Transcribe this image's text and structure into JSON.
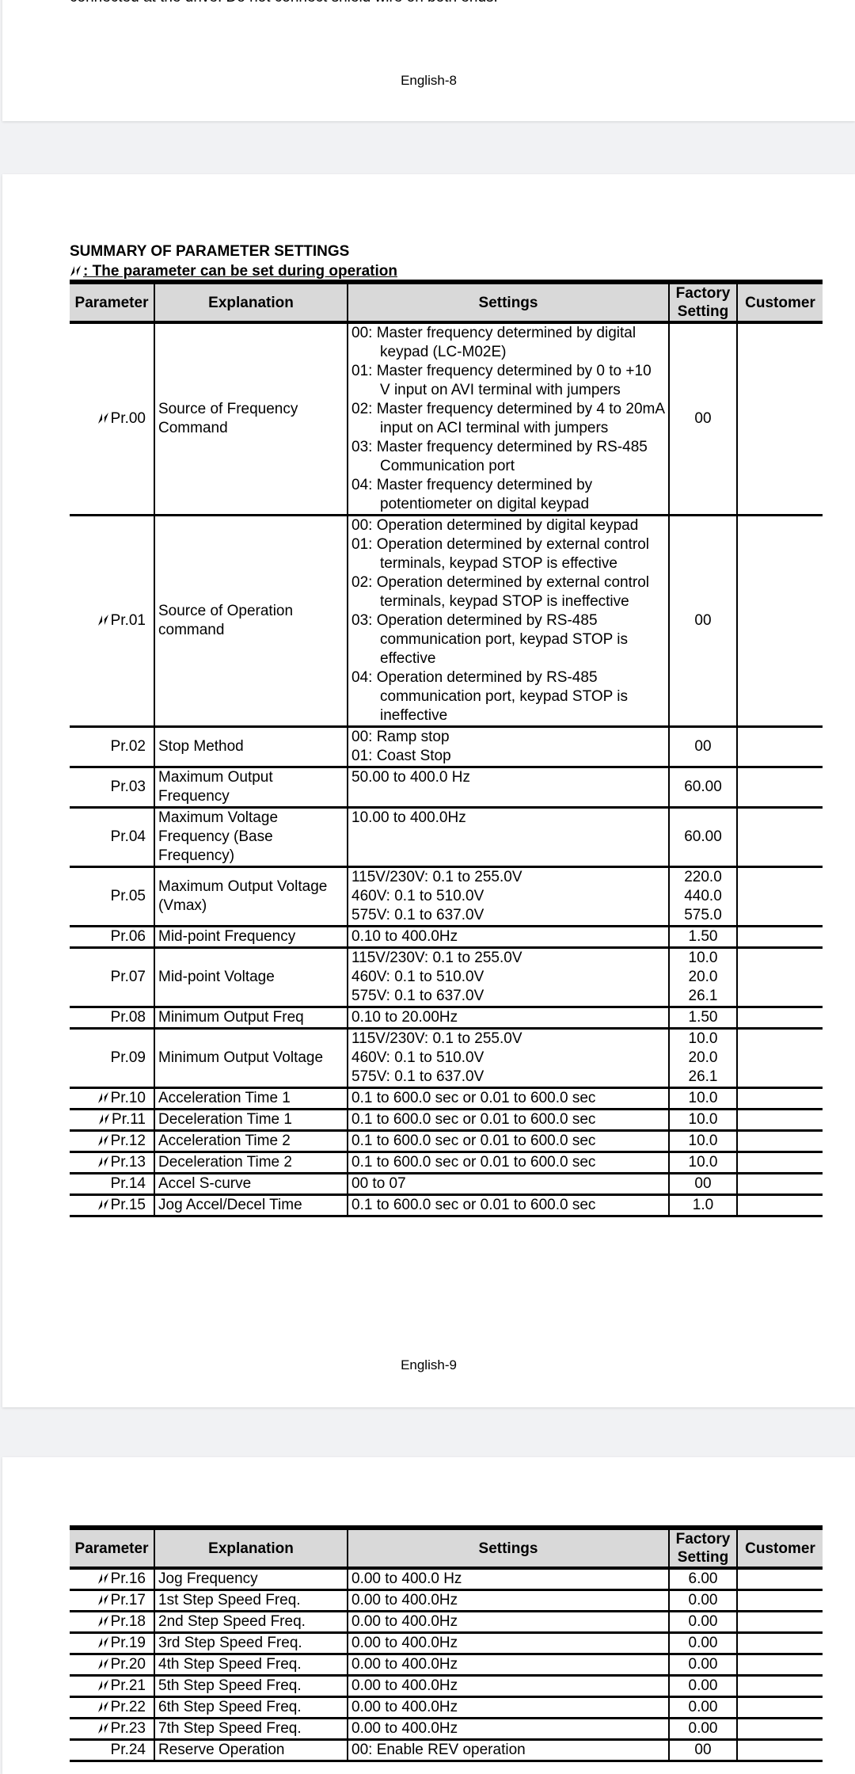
{
  "page1": {
    "top_text": "connected at the drive. Do not connect shield wire on both ends.",
    "page_number": "English-8"
  },
  "page2": {
    "title": "SUMMARY OF PARAMETER SETTINGS",
    "legend_icon": "edit-during-operation-icon",
    "legend": ": The parameter can be set during operation",
    "headers": {
      "parameter": "Parameter",
      "explanation": "Explanation",
      "settings": "Settings",
      "factory_1": "Factory",
      "factory_2": "Setting",
      "customer": "Customer"
    },
    "rows": [
      {
        "param": "Pr.00",
        "editable": true,
        "explanation": "Source of Frequency Command",
        "settings": [
          "00: Master frequency determined by digital keypad (LC-M02E)",
          "01: Master frequency determined by 0 to +10 V input on AVI terminal with jumpers",
          "02: Master frequency determined by 4 to 20mA input on ACI terminal with jumpers",
          "03: Master frequency determined by RS-485 Communication port",
          "04: Master frequency determined by potentiometer on digital keypad"
        ],
        "factory": "00"
      },
      {
        "param": "Pr.01",
        "editable": true,
        "explanation": "Source of Operation command",
        "settings": [
          "00: Operation determined by digital keypad",
          "01: Operation determined by external control terminals, keypad STOP is effective",
          "02: Operation determined by external control terminals, keypad STOP is ineffective",
          "03: Operation determined by RS-485 communication port, keypad STOP is effective",
          "04: Operation determined by RS-485 communication port, keypad STOP is ineffective"
        ],
        "factory": "00"
      },
      {
        "param": "Pr.02",
        "editable": false,
        "explanation": "Stop Method",
        "settings": [
          "00: Ramp stop",
          "01: Coast Stop"
        ],
        "factory": "00"
      },
      {
        "param": "Pr.03",
        "editable": false,
        "explanation": "Maximum Output Frequency",
        "settings": [
          "50.00 to 400.0 Hz"
        ],
        "factory": "60.00"
      },
      {
        "param": "Pr.04",
        "editable": false,
        "explanation": "Maximum Voltage Frequency (Base Frequency)",
        "settings": [
          "10.00 to 400.0Hz"
        ],
        "factory": "60.00"
      },
      {
        "param": "Pr.05",
        "editable": false,
        "explanation": "Maximum Output Voltage (Vmax)",
        "settings": [
          "115V/230V: 0.1 to 255.0V",
          "460V: 0.1 to 510.0V",
          "575V: 0.1 to 637.0V"
        ],
        "factory": "220.0\n440.0\n575.0"
      },
      {
        "param": "Pr.06",
        "editable": false,
        "explanation": "Mid-point Frequency",
        "settings": [
          "0.10 to 400.0Hz"
        ],
        "factory": "1.50"
      },
      {
        "param": "Pr.07",
        "editable": false,
        "explanation": "Mid-point Voltage",
        "settings": [
          "115V/230V: 0.1 to 255.0V",
          "460V: 0.1 to 510.0V",
          "575V: 0.1 to 637.0V"
        ],
        "factory": "10.0\n20.0\n26.1"
      },
      {
        "param": "Pr.08",
        "editable": false,
        "explanation": "Minimum Output Freq",
        "settings": [
          "0.10 to 20.00Hz"
        ],
        "factory": "1.50"
      },
      {
        "param": "Pr.09",
        "editable": false,
        "explanation": "Minimum Output Voltage",
        "settings": [
          "115V/230V: 0.1 to 255.0V",
          "460V: 0.1 to 510.0V",
          "575V: 0.1 to 637.0V"
        ],
        "factory": "10.0\n20.0\n26.1"
      },
      {
        "param": "Pr.10",
        "editable": true,
        "explanation": "Acceleration Time 1",
        "settings": [
          "0.1 to 600.0 sec or 0.01 to 600.0 sec"
        ],
        "factory": "10.0"
      },
      {
        "param": "Pr.11",
        "editable": true,
        "explanation": "Deceleration Time 1",
        "settings": [
          "0.1 to 600.0 sec or 0.01 to 600.0 sec"
        ],
        "factory": "10.0"
      },
      {
        "param": "Pr.12",
        "editable": true,
        "explanation": "Acceleration Time 2",
        "settings": [
          "0.1 to 600.0 sec or 0.01 to 600.0 sec"
        ],
        "factory": "10.0"
      },
      {
        "param": "Pr.13",
        "editable": true,
        "explanation": "Deceleration Time 2",
        "settings": [
          "0.1 to 600.0 sec or 0.01 to 600.0 sec"
        ],
        "factory": "10.0"
      },
      {
        "param": "Pr.14",
        "editable": false,
        "explanation": "Accel S-curve",
        "settings": [
          "00 to 07"
        ],
        "factory": "00"
      },
      {
        "param": "Pr.15",
        "editable": true,
        "explanation": "Jog Accel/Decel Time",
        "settings": [
          "0.1 to 600.0 sec or 0.01 to 600.0 sec"
        ],
        "factory": "1.0"
      }
    ],
    "page_number": "English-9"
  },
  "page3": {
    "headers": {
      "parameter": "Parameter",
      "explanation": "Explanation",
      "settings": "Settings",
      "factory_1": "Factory",
      "factory_2": "Setting",
      "customer": "Customer"
    },
    "rows": [
      {
        "param": "Pr.16",
        "editable": true,
        "explanation": "Jog Frequency",
        "settings": [
          "0.00 to 400.0 Hz"
        ],
        "factory": "6.00"
      },
      {
        "param": "Pr.17",
        "editable": true,
        "explanation": "1st Step Speed Freq.",
        "settings": [
          "0.00 to 400.0Hz"
        ],
        "factory": "0.00"
      },
      {
        "param": "Pr.18",
        "editable": true,
        "explanation": "2nd Step Speed Freq.",
        "settings": [
          "0.00 to 400.0Hz"
        ],
        "factory": "0.00"
      },
      {
        "param": "Pr.19",
        "editable": true,
        "explanation": "3rd Step Speed Freq.",
        "settings": [
          "0.00 to 400.0Hz"
        ],
        "factory": "0.00"
      },
      {
        "param": "Pr.20",
        "editable": true,
        "explanation": "4th Step Speed Freq.",
        "settings": [
          "0.00 to 400.0Hz"
        ],
        "factory": "0.00"
      },
      {
        "param": "Pr.21",
        "editable": true,
        "explanation": "5th Step Speed Freq.",
        "settings": [
          "0.00 to 400.0Hz"
        ],
        "factory": "0.00"
      },
      {
        "param": "Pr.22",
        "editable": true,
        "explanation": "6th Step Speed Freq.",
        "settings": [
          "0.00 to 400.0Hz"
        ],
        "factory": "0.00"
      },
      {
        "param": "Pr.23",
        "editable": true,
        "explanation": "7th Step Speed Freq.",
        "settings": [
          "0.00 to 400.0Hz"
        ],
        "factory": "0.00"
      },
      {
        "param": "Pr.24",
        "editable": false,
        "explanation": "Reserve Operation",
        "settings": [
          "00: Enable REV operation"
        ],
        "factory": "00"
      }
    ]
  }
}
